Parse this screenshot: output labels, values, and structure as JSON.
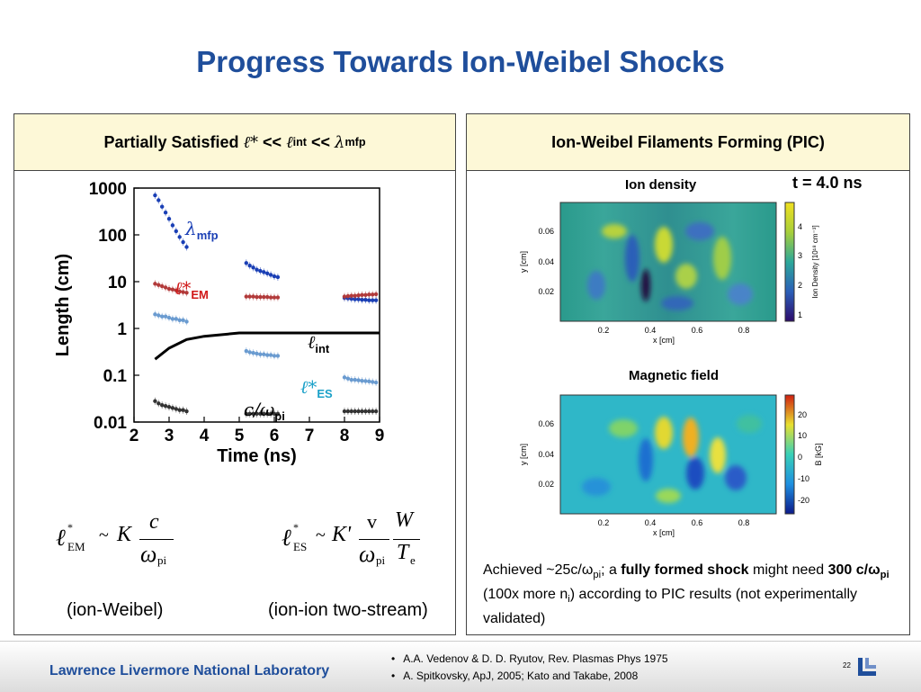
{
  "title": "Progress Towards Ion-Weibel Shocks",
  "left_panel": {
    "heading_prefix": "Partially Satisfied",
    "heading_sym1": "ℓ*",
    "heading_op1": "<<",
    "heading_sym2": "ℓ",
    "heading_sub2": "int",
    "heading_op2": "<<",
    "heading_sym3": "λ",
    "heading_sub3": "mfp",
    "formula_em_sub": "EM",
    "formula_es_sub": "ES",
    "formula_K": "K",
    "formula_Kprime": "K'",
    "formula_c": "c",
    "formula_omega": "ω",
    "formula_pi": "pi",
    "formula_v": "v",
    "formula_W": "W",
    "formula_T": "T",
    "formula_e": "e",
    "formula_tilde": "~",
    "note_left": "(ion-Weibel)",
    "note_right": "(ion-ion two-stream)"
  },
  "right_panel": {
    "heading": "Ion-Weibel Filaments Forming (PIC)",
    "time_label": "t = 4.0 ns",
    "map1": {
      "label": "Ion density",
      "y_axis_label": "y [cm]",
      "x_axis_label": "x [cm]",
      "y_ticks": [
        "0.06",
        "0.04",
        "0.02"
      ],
      "x_ticks": [
        "0.2",
        "0.4",
        "0.6",
        "0.8"
      ],
      "colorbar_label": "Ion Density [10¹⁸ cm⁻³]",
      "colorbar_ticks": [
        "4",
        "3",
        "2",
        "1"
      ]
    },
    "map2": {
      "label": "Magnetic field",
      "y_axis_label": "y [cm]",
      "x_axis_label": "x [cm]",
      "y_ticks": [
        "0.06",
        "0.04",
        "0.02"
      ],
      "x_ticks": [
        "0.2",
        "0.4",
        "0.6",
        "0.8"
      ],
      "colorbar_label": "B [kG]",
      "colorbar_ticks": [
        "20",
        "10",
        "0",
        "-10",
        "-20"
      ]
    },
    "caption_1": "Achieved ~25c/ω",
    "caption_1_sub": "pi",
    "caption_2": "; a ",
    "caption_bold": "fully formed shock",
    "caption_3": " might need ",
    "caption_bold2": "300 c/ω",
    "caption_bold2_sub": "pi",
    "caption_4": " (100x more n",
    "caption_4_sub": "i",
    "caption_5": ") according to PIC results (not experimentally validated)"
  },
  "chart_data": {
    "type": "scatter",
    "xlabel": "Time (ns)",
    "ylabel": "Length (cm)",
    "xlim": [
      2,
      9
    ],
    "ylim": [
      0.01,
      1000
    ],
    "yscale": "log",
    "x_ticks": [
      "2",
      "3",
      "4",
      "5",
      "6",
      "7",
      "8",
      "9"
    ],
    "y_ticks": [
      "1000",
      "100",
      "10",
      "1",
      "0.1",
      "0.01"
    ],
    "series": [
      {
        "name": "λmfp",
        "color": "#1a3fb5",
        "x": [
          2.6,
          2.7,
          2.8,
          2.9,
          3.0,
          3.1,
          3.2,
          3.3,
          3.4,
          3.5,
          5.2,
          5.3,
          5.4,
          5.5,
          5.6,
          5.7,
          5.8,
          5.9,
          6.0,
          6.1,
          8.0,
          8.1,
          8.2,
          8.3,
          8.4,
          8.5,
          8.6,
          8.7,
          8.8,
          8.9
        ],
        "y": [
          700,
          550,
          400,
          300,
          220,
          160,
          120,
          90,
          70,
          55,
          25,
          22,
          20,
          18,
          17,
          16,
          15,
          14,
          13,
          12.5,
          4.5,
          4.4,
          4.3,
          4.2,
          4.2,
          4.1,
          4.1,
          4.0,
          4.0,
          4.0
        ]
      },
      {
        "name": "ℓ*EM",
        "color": "#b23a3a",
        "x": [
          2.6,
          2.7,
          2.8,
          2.9,
          3.0,
          3.1,
          3.2,
          3.3,
          3.4,
          3.5,
          5.2,
          5.3,
          5.4,
          5.5,
          5.6,
          5.7,
          5.8,
          5.9,
          6.0,
          6.1,
          8.0,
          8.1,
          8.2,
          8.3,
          8.4,
          8.5,
          8.6,
          8.7,
          8.8,
          8.9
        ],
        "y": [
          9,
          8.5,
          8,
          7.5,
          7,
          6.8,
          6.5,
          6.2,
          6,
          5.8,
          4.8,
          4.8,
          4.8,
          4.7,
          4.7,
          4.7,
          4.7,
          4.6,
          4.6,
          4.6,
          4.8,
          4.9,
          5.0,
          5.0,
          5.1,
          5.2,
          5.2,
          5.3,
          5.3,
          5.4
        ]
      },
      {
        "name": "ℓ*ES",
        "color": "#6a9bd0",
        "x": [
          2.6,
          2.7,
          2.8,
          2.9,
          3.0,
          3.1,
          3.2,
          3.3,
          3.4,
          3.5,
          5.2,
          5.3,
          5.4,
          5.5,
          5.6,
          5.7,
          5.8,
          5.9,
          6.0,
          6.1,
          8.0,
          8.1,
          8.2,
          8.3,
          8.4,
          8.5,
          8.6,
          8.7,
          8.8,
          8.9
        ],
        "y": [
          2.0,
          1.9,
          1.8,
          1.8,
          1.7,
          1.6,
          1.6,
          1.5,
          1.5,
          1.4,
          0.33,
          0.31,
          0.3,
          0.29,
          0.28,
          0.28,
          0.27,
          0.27,
          0.26,
          0.26,
          0.09,
          0.085,
          0.08,
          0.08,
          0.078,
          0.076,
          0.075,
          0.074,
          0.072,
          0.07
        ]
      },
      {
        "name": "c/ωpi",
        "color": "#333333",
        "x": [
          2.6,
          2.7,
          2.8,
          2.9,
          3.0,
          3.1,
          3.2,
          3.3,
          3.4,
          3.5,
          5.2,
          5.3,
          5.4,
          5.5,
          5.6,
          5.7,
          5.8,
          5.9,
          6.0,
          6.1,
          8.0,
          8.1,
          8.2,
          8.3,
          8.4,
          8.5,
          8.6,
          8.7,
          8.8,
          8.9
        ],
        "y": [
          0.028,
          0.025,
          0.023,
          0.022,
          0.021,
          0.02,
          0.019,
          0.018,
          0.018,
          0.017,
          0.015,
          0.015,
          0.015,
          0.015,
          0.015,
          0.015,
          0.015,
          0.015,
          0.015,
          0.015,
          0.017,
          0.017,
          0.017,
          0.017,
          0.017,
          0.017,
          0.017,
          0.017,
          0.017,
          0.017
        ]
      },
      {
        "name": "ℓint",
        "color": "#000000",
        "style": "line",
        "x": [
          2.6,
          3.0,
          3.5,
          4.0,
          5.0,
          6.0,
          7.0,
          8.0,
          9.0
        ],
        "y": [
          0.22,
          0.38,
          0.58,
          0.68,
          0.8,
          0.8,
          0.8,
          0.8,
          0.8
        ]
      }
    ],
    "annotations": [
      {
        "sym": "λ",
        "sub": "mfp",
        "color": "#1a3fb5"
      },
      {
        "sym": "ℓ*",
        "sub": "EM",
        "color": "#d01818"
      },
      {
        "sym": "ℓ",
        "sub": "int",
        "color": "#000000"
      },
      {
        "sym": "ℓ*",
        "sub": "ES",
        "color": "#1aa0c8"
      },
      {
        "sym": "c/ω",
        "sub": "pi",
        "color": "#000000"
      }
    ]
  },
  "footer": {
    "lab": "Lawrence Livermore National Laboratory",
    "refs": [
      "A.A. Vedenov & D. D. Ryutov, Rev. Plasmas Phys 1975",
      "A. Spitkovsky, ApJ, 2005; Kato and Takabe, 2008"
    ],
    "page_number": "22"
  }
}
